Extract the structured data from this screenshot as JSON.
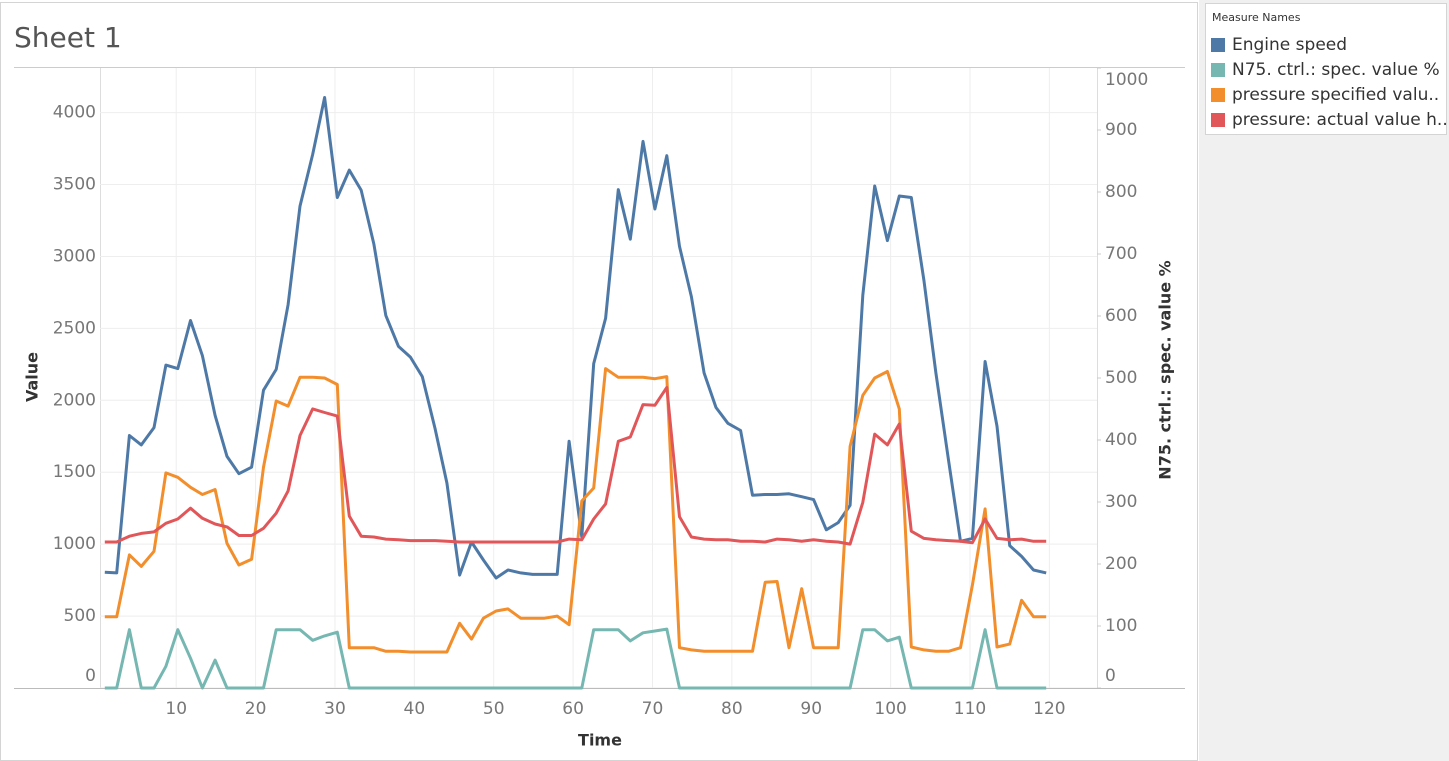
{
  "chart_data": {
    "type": "line",
    "title": "Sheet 1",
    "x_label": "Time",
    "y_label": "Value",
    "y2_label": "N75. ctrl.: spec. value %",
    "legend_title": "Measure Names",
    "legend": "right",
    "grid": true,
    "xlim": [
      0.4,
      126
    ],
    "xticks": [
      10,
      20,
      30,
      40,
      50,
      60,
      70,
      80,
      90,
      100,
      110,
      120
    ],
    "ylim": [
      0,
      4310
    ],
    "yticks": [
      0,
      500,
      1000,
      1500,
      2000,
      2500,
      3000,
      3500,
      4000
    ],
    "y2lim": [
      0,
      1000
    ],
    "y2ticks": [
      0,
      100,
      200,
      300,
      400,
      500,
      600,
      700,
      800,
      900,
      1000
    ],
    "x": [
      1,
      2.5,
      4.1,
      5.6,
      7.2,
      8.7,
      10.2,
      11.8,
      13.3,
      14.9,
      16.4,
      17.9,
      19.5,
      21.0,
      22.6,
      24.1,
      25.6,
      27.2,
      28.7,
      30.3,
      31.8,
      33.3,
      34.9,
      36.4,
      38.0,
      39.5,
      41.0,
      42.6,
      44.1,
      45.7,
      47.2,
      48.7,
      50.3,
      51.8,
      53.4,
      54.9,
      56.4,
      58.0,
      59.5,
      61.1,
      62.6,
      64.1,
      65.7,
      67.2,
      68.8,
      70.3,
      71.8,
      73.4,
      74.9,
      76.5,
      78.0,
      79.5,
      81.1,
      82.6,
      84.2,
      85.7,
      87.2,
      88.8,
      90.3,
      91.9,
      93.4,
      94.9,
      96.5,
      98.0,
      99.6,
      101.1,
      102.6,
      104.2,
      105.7,
      107.3,
      108.8,
      110.3,
      111.9,
      113.4,
      115.0,
      116.5,
      118.0,
      119.6
    ],
    "series": [
      {
        "name": "Engine speed",
        "color": "#4e79a7",
        "values": [
          805,
          800,
          1755,
          1690,
          1810,
          2245,
          2220,
          2555,
          2310,
          1895,
          1610,
          1490,
          1535,
          2070,
          2215,
          2665,
          3350,
          3710,
          4105,
          3410,
          3600,
          3460,
          3085,
          2590,
          2375,
          2300,
          2165,
          1805,
          1425,
          785,
          1015,
          890,
          765,
          820,
          800,
          790,
          790,
          790,
          1715,
          1050,
          2255,
          2570,
          3465,
          3120,
          3800,
          3330,
          3700,
          3070,
          2720,
          2190,
          1950,
          1840,
          1790,
          1340,
          1345,
          1345,
          1350,
          1330,
          1310,
          1100,
          1150,
          1270,
          2730,
          3490,
          3110,
          3420,
          3410,
          2830,
          2190,
          1580,
          1020,
          1040,
          2270,
          1820,
          990,
          915,
          820,
          800
        ]
      },
      {
        "name": "N75. ctrl.: spec. value %",
        "color": "#76b7b2",
        "axis": "y2",
        "values": [
          0,
          0,
          94,
          0,
          0,
          35,
          94,
          48,
          0,
          45,
          0,
          0,
          0,
          0,
          94,
          94,
          94,
          77,
          84,
          90,
          0,
          0,
          0,
          0,
          0,
          0,
          0,
          0,
          0,
          0,
          0,
          0,
          0,
          0,
          0,
          0,
          0,
          0,
          0,
          0,
          94,
          94,
          94,
          76,
          89,
          92,
          95,
          0,
          0,
          0,
          0,
          0,
          0,
          0,
          0,
          0,
          0,
          0,
          0,
          0,
          0,
          0,
          94,
          94,
          76,
          82,
          0,
          0,
          0,
          0,
          0,
          0,
          94,
          0,
          0,
          0,
          0,
          0
        ]
      },
      {
        "name": "pressure specified valu..",
        "color": "#f28e2b",
        "values": [
          495,
          495,
          925,
          845,
          950,
          1495,
          1465,
          1395,
          1345,
          1380,
          1005,
          855,
          895,
          1535,
          1995,
          1960,
          2160,
          2160,
          2155,
          2110,
          280,
          280,
          280,
          255,
          255,
          250,
          250,
          250,
          250,
          450,
          340,
          485,
          535,
          550,
          485,
          485,
          485,
          500,
          440,
          1300,
          1390,
          2220,
          2160,
          2160,
          2160,
          2150,
          2165,
          280,
          265,
          255,
          255,
          255,
          255,
          255,
          735,
          740,
          280,
          690,
          280,
          280,
          280,
          1680,
          2035,
          2155,
          2200,
          1940,
          285,
          265,
          255,
          255,
          280,
          715,
          1245,
          285,
          305,
          610,
          495,
          495
        ]
      },
      {
        "name": "pressure: actual value h..",
        "color": "#e15759",
        "values": [
          1015,
          1015,
          1055,
          1075,
          1085,
          1145,
          1175,
          1250,
          1180,
          1140,
          1120,
          1060,
          1060,
          1110,
          1215,
          1370,
          1755,
          1940,
          1915,
          1890,
          1195,
          1055,
          1050,
          1035,
          1030,
          1025,
          1025,
          1025,
          1020,
          1015,
          1015,
          1015,
          1015,
          1015,
          1015,
          1015,
          1015,
          1015,
          1035,
          1030,
          1175,
          1280,
          1715,
          1745,
          1970,
          1965,
          2090,
          1190,
          1050,
          1035,
          1030,
          1030,
          1020,
          1020,
          1015,
          1035,
          1030,
          1020,
          1030,
          1020,
          1015,
          1000,
          1290,
          1765,
          1690,
          1835,
          1090,
          1040,
          1030,
          1025,
          1020,
          1010,
          1175,
          1040,
          1030,
          1035,
          1020,
          1020
        ]
      }
    ]
  }
}
